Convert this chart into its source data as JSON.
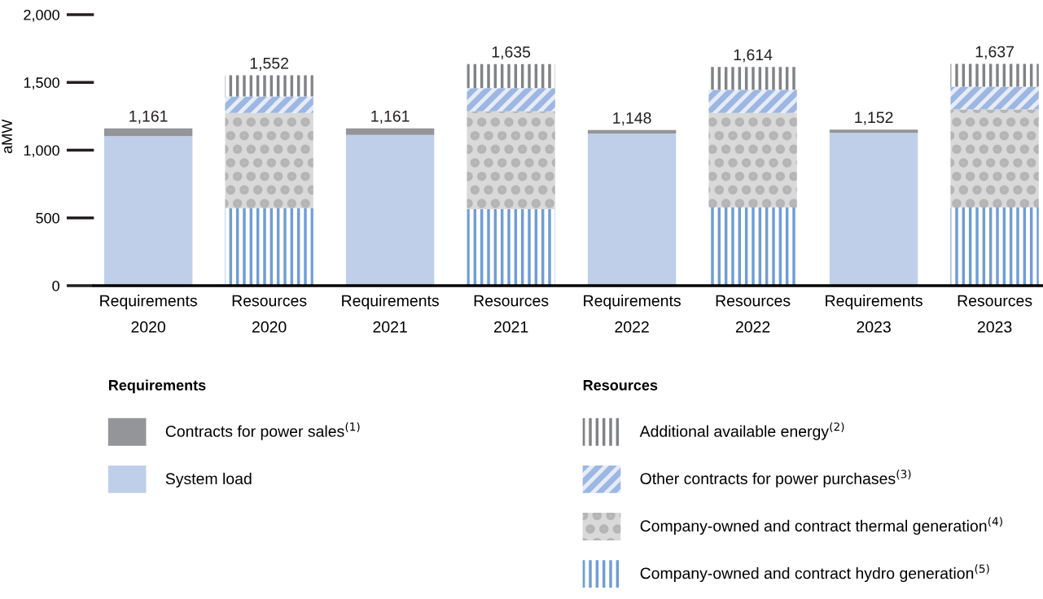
{
  "chart_data": {
    "type": "bar",
    "stacked": true,
    "ylabel": "aMW",
    "categories": [
      "Requirements\n2020",
      "Resources\n2020",
      "Requirements\n2021",
      "Resources\n2021",
      "Requirements\n2022",
      "Resources\n2022",
      "Requirements\n2023",
      "Resources\n2023"
    ],
    "series": [
      {
        "name": "System load",
        "color": "#bfcfe9",
        "values": [
          1103,
          null,
          1113,
          null,
          1122,
          null,
          1127,
          null
        ]
      },
      {
        "name": "Contracts for power sales$^{(1)}$",
        "color": "#939598",
        "values": [
          58,
          null,
          48,
          null,
          26,
          null,
          25,
          null
        ]
      },
      {
        "name": "Company-owned and contract hydro generation$^{(5)}$",
        "color": "#6f9dd6",
        "values": [
          null,
          571,
          null,
          564,
          null,
          576,
          null,
          576
        ]
      },
      {
        "name": "Company-owned and contract thermal generation$^{(4)}$",
        "color": "#d9d9d9",
        "values": [
          null,
          704,
          null,
          723,
          null,
          699,
          null,
          725
        ]
      },
      {
        "name": "Other contracts for power purchases$^{(3)}$",
        "color": "#9db7e2",
        "values": [
          null,
          122,
          null,
          171,
          null,
          171,
          null,
          167
        ]
      },
      {
        "name": "Additional available energy$^{(2)}$",
        "color": "#808285",
        "values": [
          null,
          155,
          null,
          177,
          null,
          168,
          null,
          169
        ]
      }
    ],
    "totals": [
      "1,161",
      "1,552",
      "1,161",
      "1,635",
      "1,148",
      "1,614",
      "1,152",
      "1,637"
    ],
    "ylim": [
      0,
      2000
    ],
    "yticks": [
      0,
      {
        "value": 500,
        "label": "500"
      },
      {
        "value": 1000,
        "label": "1,000"
      },
      {
        "value": 1500,
        "label": "1,500"
      },
      {
        "value": 2000,
        "label": "2,000"
      }
    ],
    "grid": false,
    "legend": "bottom",
    "annotations": [
      "Requirements",
      "Resources"
    ]
  }
}
